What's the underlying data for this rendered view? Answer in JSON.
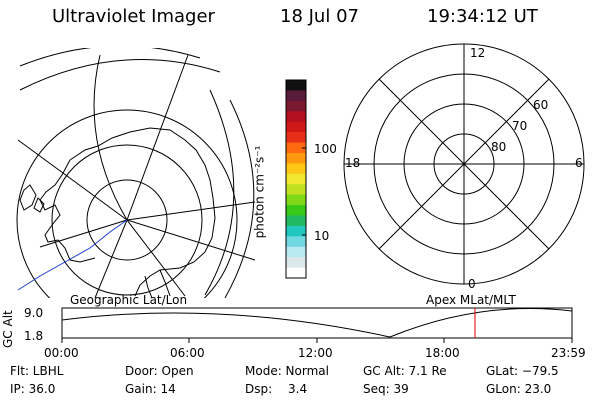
{
  "header": {
    "title": "Ultraviolet Imager",
    "date": "18 Jul 07",
    "time": "19:34:12 UT"
  },
  "colorbar": {
    "unit_label": "photon cm⁻²s⁻¹",
    "tick_labels": [
      "100",
      "10"
    ],
    "colors": [
      "#101010",
      "#5a1a3a",
      "#7a1830",
      "#b01020",
      "#d01818",
      "#e83018",
      "#ff6a10",
      "#ff9a10",
      "#ffc818",
      "#f0e830",
      "#c0e020",
      "#80d818",
      "#38c818",
      "#20b860",
      "#20c8c0",
      "#70d8e0",
      "#b8e8f0",
      "#dde8ec",
      "#ffffff"
    ]
  },
  "left_map": {
    "label": "Geographic Lat/Lon"
  },
  "right_polar": {
    "label": "Apex MLat/MLT",
    "hour_labels": {
      "top": "12",
      "left": "18",
      "right": "6",
      "bottom": "0"
    },
    "lat_labels": [
      "60",
      "70",
      "80"
    ]
  },
  "timeline": {
    "ylabel": "GC Alt",
    "y_ticks": [
      "9.0",
      "1.8"
    ],
    "x_ticks": [
      "00:00",
      "06:00",
      "12:00",
      "18:00",
      "23:59"
    ],
    "current_time_color": "#e00000"
  },
  "info": {
    "flt": "Flt: LBHL",
    "door": "Door: Open",
    "mode": "Mode: Normal",
    "gc_alt": "GC Alt: 7.1 Re",
    "glat": "GLat: −79.5",
    "ip": "IP: 36.0",
    "gain": "Gain: 14",
    "dsp_label": "Dsp:",
    "dsp_value": "3.4",
    "seq": "Seq: 39",
    "glon": "GLon: 23.0"
  }
}
